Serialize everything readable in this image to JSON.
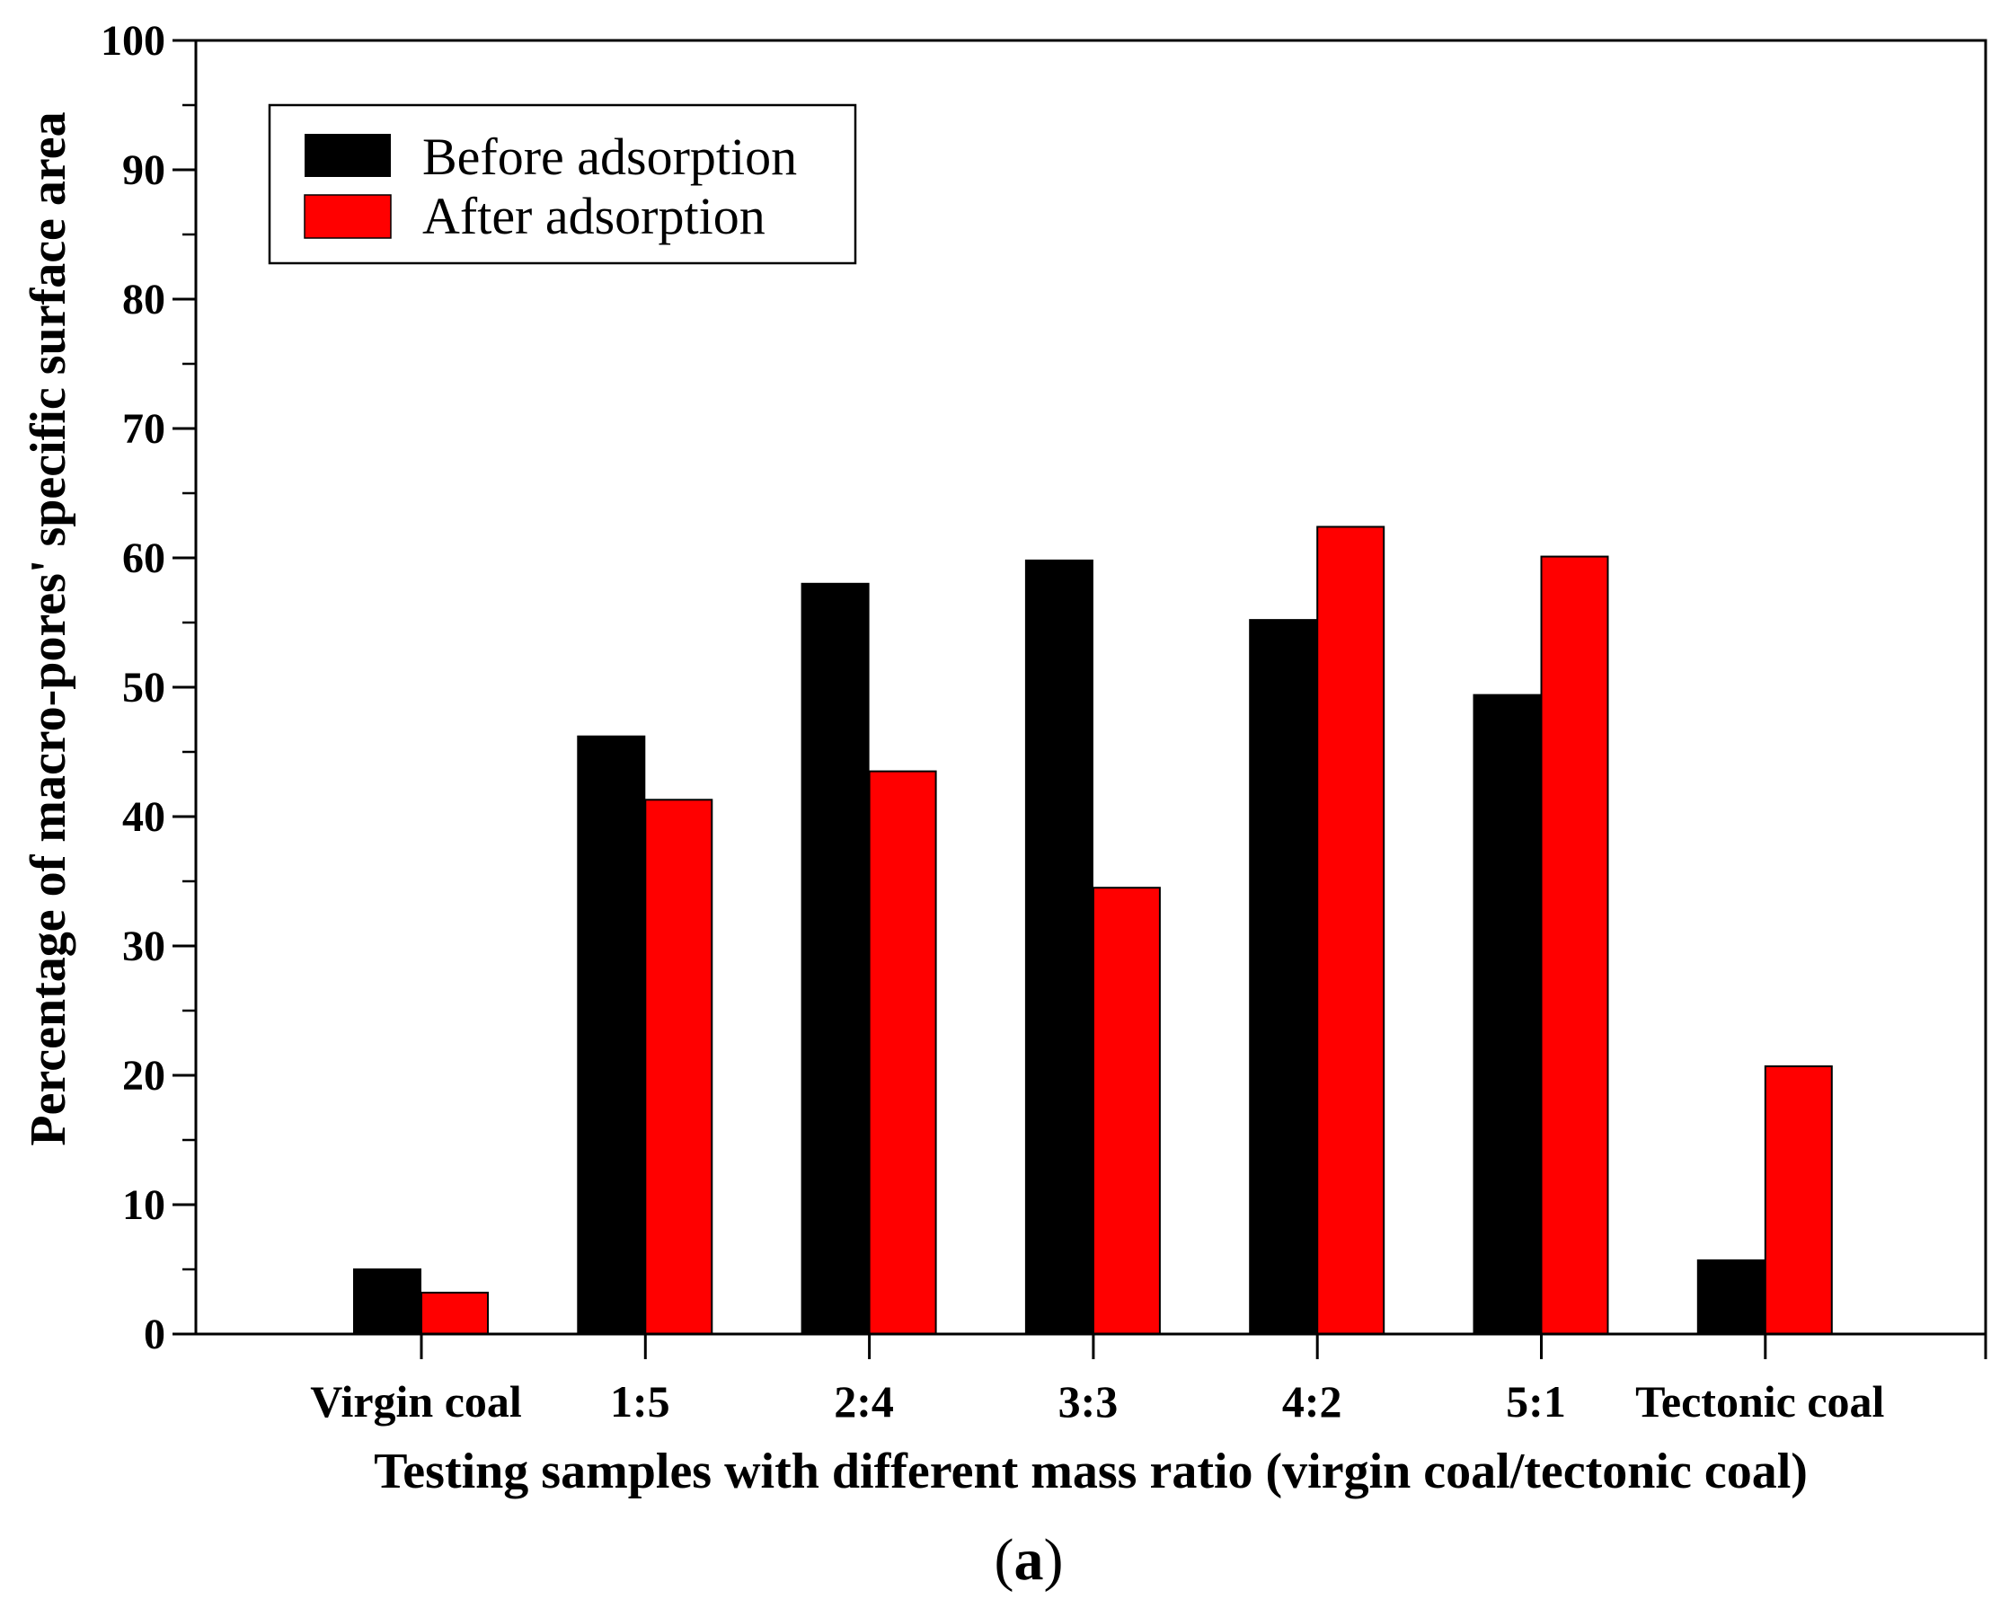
{
  "chart_data": {
    "type": "bar",
    "title": "",
    "xlabel": "Testing samples with different mass ratio (virgin coal/tectonic coal)",
    "ylabel": "Percentage of macro-pores' specific surface area",
    "categories": [
      "Virgin coal",
      "1:5",
      "2:4",
      "3:3",
      "4:2",
      "5:1",
      "Tectonic coal"
    ],
    "series": [
      {
        "name": "Before adsorption",
        "color": "#000000",
        "values": [
          5.0,
          46.2,
          58.0,
          59.8,
          55.2,
          49.4,
          5.7
        ]
      },
      {
        "name": "After adsorption",
        "color": "#ff0000",
        "values": [
          3.2,
          41.3,
          43.5,
          34.5,
          62.4,
          60.1,
          20.7
        ]
      }
    ],
    "ylim": [
      0,
      100
    ],
    "yticks": [
      0,
      10,
      20,
      30,
      40,
      50,
      60,
      70,
      80,
      90,
      100
    ],
    "grid": false,
    "legend_position": "top-left",
    "panel_label_prefix": "(",
    "panel_label_letter": "a",
    "panel_label_suffix": ")"
  }
}
